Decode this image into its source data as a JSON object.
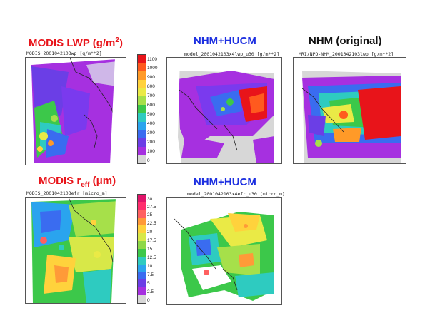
{
  "panels": [
    {
      "heading_pre": "MODIS LWP (g/m",
      "heading_sup": "2",
      "heading_post": ")",
      "subtitle": "MODIS_2001042103wp [g/m**2]"
    },
    {
      "heading": "NHM+HUCM",
      "subtitle": "model_2001042103x4lwp_u30 [g/m**2]"
    },
    {
      "heading": "NHM (original)",
      "subtitle": "MRI/NPD-NHM_2001042103lwp [g/m**2]"
    },
    {
      "heading_pre": "MODIS r",
      "heading_sub": "eff",
      "heading_post": " (μm)",
      "subtitle": "MODIS_2001042103efr [micro_m]"
    },
    {
      "heading": "NHM+HUCM",
      "subtitle": "model_2001042103x4efr_u30 [micro_m]"
    }
  ],
  "colorbars": {
    "lwp": {
      "colors": [
        "#e8141a",
        "#ff5a1e",
        "#ff9a28",
        "#ffd23c",
        "#eaea46",
        "#a6e04a",
        "#3cc84a",
        "#2ecbc0",
        "#2aa4ee",
        "#3a6cf0",
        "#6b3ee6",
        "#a630e0",
        "#d7d7d7"
      ],
      "labels": [
        "1100",
        "1000",
        "900",
        "800",
        "700",
        "600",
        "500",
        "400",
        "300",
        "200",
        "100",
        "0"
      ]
    },
    "reff": {
      "colors": [
        "#e0146a",
        "#ff2e6e",
        "#ff6060",
        "#ff9a38",
        "#ffd23c",
        "#d8e848",
        "#8ed848",
        "#3cc84a",
        "#2ecbc0",
        "#2aa4ee",
        "#3a6cf0",
        "#6b3ee6",
        "#a630e0",
        "#d7d7d7"
      ],
      "labels": [
        "30",
        "27.5",
        "25",
        "22.5",
        "20",
        "17.5",
        "15",
        "12.5",
        "10",
        "7.5",
        "5",
        "2.5",
        "0"
      ]
    }
  }
}
